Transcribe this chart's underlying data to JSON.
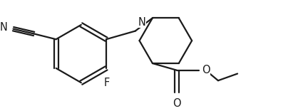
{
  "background_color": "#ffffff",
  "line_color": "#1a1a1a",
  "line_width": 1.6,
  "label_fontsize": 10.5,
  "fig_width": 4.25,
  "fig_height": 1.56,
  "dpi": 100,
  "xlim": [
    0,
    4.25
  ],
  "ylim": [
    0,
    1.56
  ]
}
